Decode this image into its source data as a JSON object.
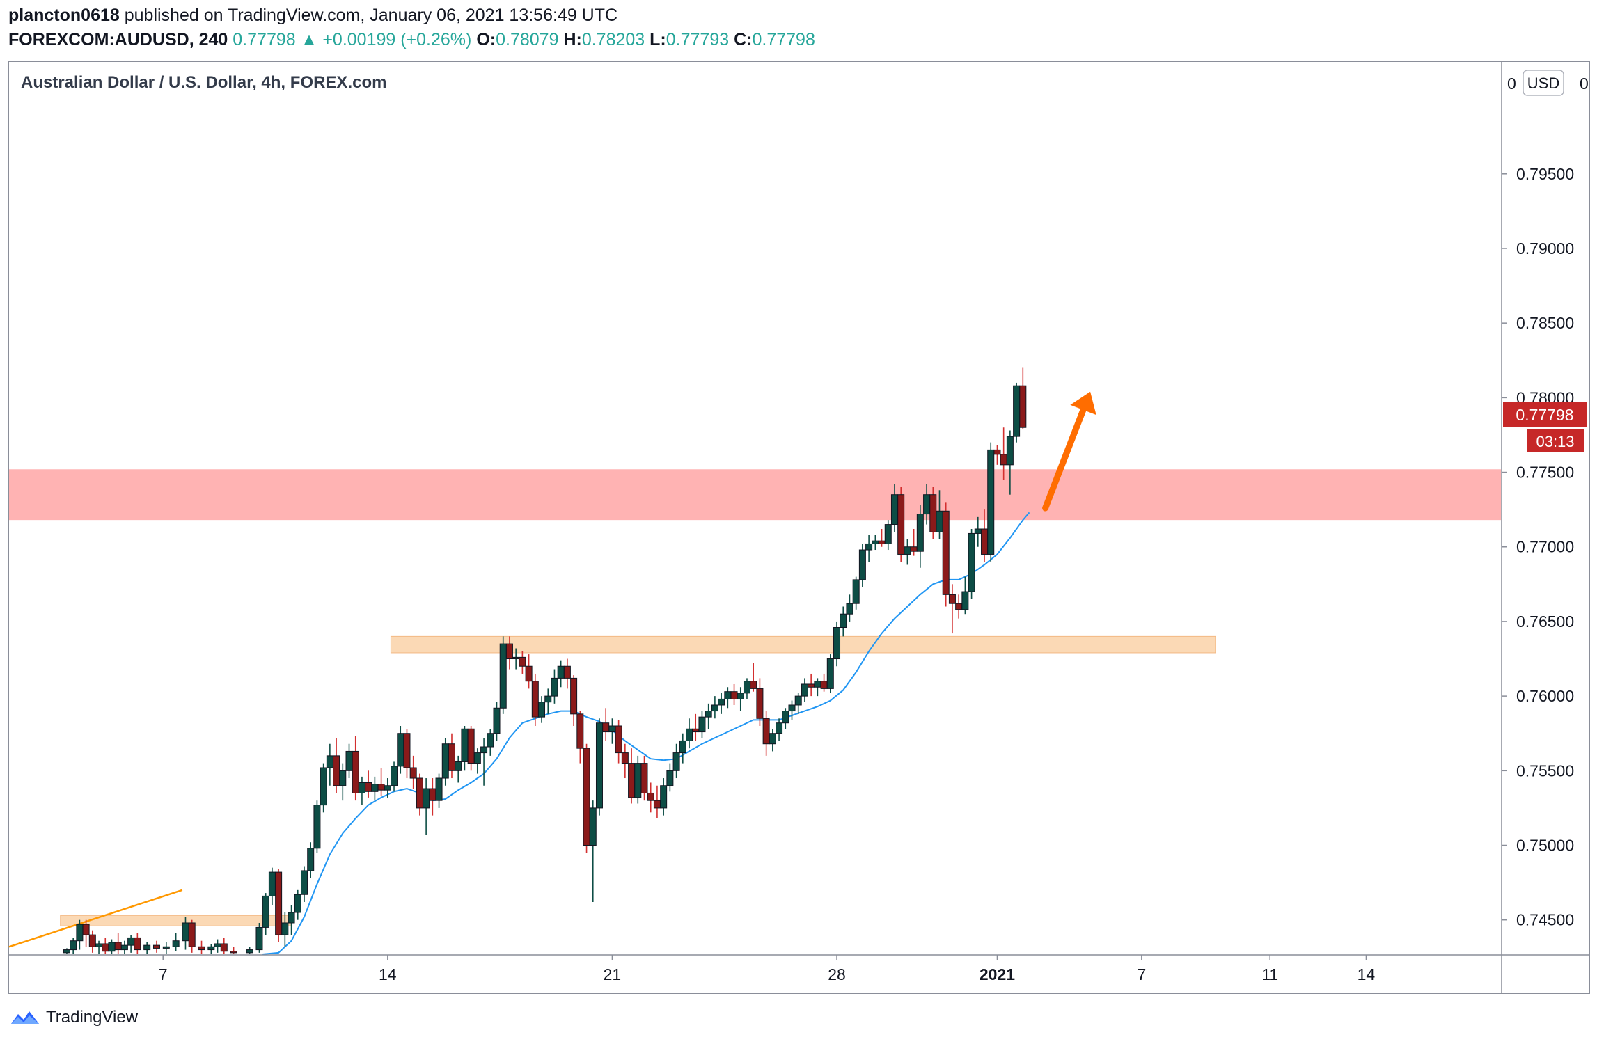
{
  "header": {
    "author": "plancton0618",
    "published_text": "published on TradingView.com, January 06, 2021 13:56:49 UTC",
    "symbol": "FOREXCOM:AUDUSD, 240",
    "last": "0.77798",
    "change": "+0.00199 (+0.26%)",
    "o_label": "O:",
    "o_value": "0.78079",
    "h_label": "H:",
    "h_value": "0.78203",
    "l_label": "L:",
    "l_value": "0.77793",
    "c_label": "C:",
    "c_value": "0.77798"
  },
  "chart": {
    "title": "Australian Dollar / U.S. Dollar, 4h, FOREX.com",
    "currency_button": "USD",
    "price_badge": "0.77798",
    "countdown_badge": "03:13",
    "top_partial_label": "0",
    "colors": {
      "up": "#0d4d45",
      "down": "#8b1a1a",
      "ma": "#2196f3",
      "resistance_zone": "#ffb3b3",
      "support_zone": "#fbd9b5",
      "arrow": "#ff6d00",
      "trendline": "#ff9800",
      "badge": "#c62828"
    },
    "icons": [
      "tradingview-logo-icon",
      "up-triangle-icon"
    ]
  },
  "chart_data": {
    "type": "candlestick",
    "title": "Australian Dollar / U.S. Dollar, 4h, FOREX.com",
    "ylim": [
      0.7427,
      0.8025
    ],
    "y_ticks": [
      "0.74500",
      "0.75000",
      "0.75500",
      "0.76000",
      "0.76500",
      "0.77000",
      "0.77500",
      "0.78000",
      "0.78500",
      "0.79000",
      "0.79500"
    ],
    "x_ticks": [
      {
        "label": "7",
        "t": 7
      },
      {
        "label": "14",
        "t": 14
      },
      {
        "label": "21",
        "t": 21
      },
      {
        "label": "28",
        "t": 28
      },
      {
        "label": "2021",
        "t": 33,
        "bold": true
      },
      {
        "label": "7",
        "t": 37.5
      },
      {
        "label": "11",
        "t": 41.5
      },
      {
        "label": "14",
        "t": 44.5
      }
    ],
    "x_range": [
      2.2,
      48.7
    ],
    "zones": [
      {
        "name": "resistance",
        "t0": 2.2,
        "t1": 48.7,
        "y0": 0.7718,
        "y1": 0.7752
      },
      {
        "name": "support-upper",
        "t0": 14.1,
        "t1": 39.8,
        "y0": 0.7629,
        "y1": 0.764
      },
      {
        "name": "support-lower",
        "t0": 3.8,
        "t1": 11.0,
        "y0": 0.7446,
        "y1": 0.7453
      }
    ],
    "trendline": {
      "t0": 2.2,
      "y0": 0.7432,
      "t1": 7.6,
      "y1": 0.747
    },
    "arrow": {
      "t0": 34.5,
      "y0": 0.7726,
      "t1": 35.9,
      "y1": 0.7804
    },
    "last_price": 0.77798,
    "candles": [
      [
        4.0,
        0.7428,
        0.7431,
        0.7426,
        0.743
      ],
      [
        4.2,
        0.743,
        0.7438,
        0.7425,
        0.7436
      ],
      [
        4.4,
        0.7436,
        0.745,
        0.743,
        0.7447
      ],
      [
        4.6,
        0.7447,
        0.745,
        0.7432,
        0.744
      ],
      [
        4.8,
        0.744,
        0.7443,
        0.7428,
        0.7432
      ],
      [
        5.0,
        0.7432,
        0.7436,
        0.7427,
        0.7434
      ],
      [
        5.2,
        0.7434,
        0.7438,
        0.7425,
        0.7429
      ],
      [
        5.4,
        0.7429,
        0.7437,
        0.7426,
        0.7435
      ],
      [
        5.6,
        0.7435,
        0.7441,
        0.7427,
        0.743
      ],
      [
        5.8,
        0.743,
        0.7436,
        0.7426,
        0.7433
      ],
      [
        6.0,
        0.7433,
        0.744,
        0.7428,
        0.7438
      ],
      [
        6.2,
        0.7438,
        0.7441,
        0.7427,
        0.743
      ],
      [
        6.5,
        0.743,
        0.7435,
        0.7427,
        0.7433
      ],
      [
        6.8,
        0.7433,
        0.7436,
        0.7428,
        0.7431
      ],
      [
        7.1,
        0.7431,
        0.7435,
        0.7427,
        0.7432
      ],
      [
        7.4,
        0.7432,
        0.7441,
        0.7429,
        0.7436
      ],
      [
        7.7,
        0.7436,
        0.7452,
        0.743,
        0.7448
      ],
      [
        7.9,
        0.7448,
        0.745,
        0.7428,
        0.7432
      ],
      [
        8.2,
        0.7432,
        0.7436,
        0.7427,
        0.743
      ],
      [
        8.5,
        0.743,
        0.7434,
        0.7426,
        0.7432
      ],
      [
        8.7,
        0.7432,
        0.7437,
        0.7428,
        0.7434
      ],
      [
        8.9,
        0.7434,
        0.7438,
        0.7427,
        0.7429
      ],
      [
        9.2,
        0.7429,
        0.7432,
        0.7426,
        0.7428
      ],
      [
        9.7,
        0.7428,
        0.7432,
        0.7426,
        0.743
      ],
      [
        10.0,
        0.743,
        0.7448,
        0.7428,
        0.7445
      ],
      [
        10.2,
        0.7445,
        0.7468,
        0.744,
        0.7466
      ],
      [
        10.4,
        0.7466,
        0.7485,
        0.746,
        0.7482
      ],
      [
        10.6,
        0.7482,
        0.7484,
        0.7435,
        0.744
      ],
      [
        10.8,
        0.744,
        0.7455,
        0.7432,
        0.7448
      ],
      [
        11.0,
        0.7448,
        0.746,
        0.744,
        0.7455
      ],
      [
        11.2,
        0.7455,
        0.747,
        0.745,
        0.7467
      ],
      [
        11.4,
        0.7467,
        0.7486,
        0.7462,
        0.7483
      ],
      [
        11.6,
        0.7483,
        0.7502,
        0.7478,
        0.7498
      ],
      [
        11.8,
        0.7498,
        0.753,
        0.7495,
        0.7527
      ],
      [
        12.0,
        0.7527,
        0.7555,
        0.7522,
        0.7552
      ],
      [
        12.2,
        0.7552,
        0.7568,
        0.754,
        0.756
      ],
      [
        12.4,
        0.756,
        0.7572,
        0.7535,
        0.754
      ],
      [
        12.6,
        0.754,
        0.7555,
        0.753,
        0.755
      ],
      [
        12.8,
        0.755,
        0.7568,
        0.7545,
        0.7563
      ],
      [
        13.0,
        0.7563,
        0.7573,
        0.753,
        0.7535
      ],
      [
        13.2,
        0.7535,
        0.7546,
        0.7527,
        0.7542
      ],
      [
        13.4,
        0.7542,
        0.755,
        0.7532,
        0.7536
      ],
      [
        13.6,
        0.7536,
        0.7546,
        0.753,
        0.7541
      ],
      [
        13.8,
        0.7541,
        0.7552,
        0.7533,
        0.7537
      ],
      [
        14.0,
        0.7537,
        0.7545,
        0.7532,
        0.754
      ],
      [
        14.2,
        0.754,
        0.7556,
        0.7536,
        0.7553
      ],
      [
        14.4,
        0.7553,
        0.758,
        0.7548,
        0.7575
      ],
      [
        14.6,
        0.7575,
        0.7578,
        0.7545,
        0.7552
      ],
      [
        14.8,
        0.7552,
        0.756,
        0.7538,
        0.7545
      ],
      [
        15.0,
        0.7545,
        0.7548,
        0.752,
        0.7525
      ],
      [
        15.2,
        0.7525,
        0.7545,
        0.7507,
        0.7538
      ],
      [
        15.4,
        0.7538,
        0.7545,
        0.752,
        0.753
      ],
      [
        15.6,
        0.753,
        0.7548,
        0.7525,
        0.7545
      ],
      [
        15.8,
        0.7545,
        0.7572,
        0.754,
        0.7568
      ],
      [
        16.0,
        0.7568,
        0.7575,
        0.7545,
        0.755
      ],
      [
        16.2,
        0.755,
        0.756,
        0.7542,
        0.7556
      ],
      [
        16.4,
        0.7556,
        0.758,
        0.755,
        0.7578
      ],
      [
        16.6,
        0.7578,
        0.758,
        0.755,
        0.7555
      ],
      [
        16.8,
        0.7555,
        0.7565,
        0.7548,
        0.7562
      ],
      [
        17.0,
        0.7562,
        0.7572,
        0.754,
        0.7566
      ],
      [
        17.2,
        0.7566,
        0.7578,
        0.756,
        0.7575
      ],
      [
        17.4,
        0.7575,
        0.7596,
        0.757,
        0.7592
      ],
      [
        17.6,
        0.7592,
        0.764,
        0.7588,
        0.7635
      ],
      [
        17.8,
        0.7635,
        0.764,
        0.7618,
        0.7625
      ],
      [
        18.0,
        0.7625,
        0.7632,
        0.7618,
        0.7626
      ],
      [
        18.2,
        0.7626,
        0.763,
        0.7615,
        0.762
      ],
      [
        18.4,
        0.762,
        0.7628,
        0.7605,
        0.761
      ],
      [
        18.6,
        0.761,
        0.7615,
        0.758,
        0.7586
      ],
      [
        18.8,
        0.7586,
        0.76,
        0.7582,
        0.7596
      ],
      [
        19.0,
        0.7596,
        0.7605,
        0.7588,
        0.76
      ],
      [
        19.2,
        0.76,
        0.7618,
        0.7595,
        0.7612
      ],
      [
        19.4,
        0.7612,
        0.7624,
        0.7606,
        0.762
      ],
      [
        19.6,
        0.762,
        0.7625,
        0.7605,
        0.7612
      ],
      [
        19.8,
        0.7612,
        0.7614,
        0.758,
        0.7588
      ],
      [
        20.0,
        0.7588,
        0.759,
        0.7555,
        0.7565
      ],
      [
        20.2,
        0.7565,
        0.7568,
        0.7495,
        0.75
      ],
      [
        20.4,
        0.75,
        0.753,
        0.7462,
        0.7525
      ],
      [
        20.6,
        0.7525,
        0.7585,
        0.752,
        0.7582
      ],
      [
        20.8,
        0.7582,
        0.7592,
        0.757,
        0.7576
      ],
      [
        21.0,
        0.7576,
        0.7585,
        0.7568,
        0.758
      ],
      [
        21.2,
        0.758,
        0.7584,
        0.7555,
        0.7562
      ],
      [
        21.4,
        0.7562,
        0.7568,
        0.7545,
        0.7555
      ],
      [
        21.6,
        0.7555,
        0.7565,
        0.7528,
        0.7532
      ],
      [
        21.8,
        0.7532,
        0.756,
        0.7528,
        0.7555
      ],
      [
        22.0,
        0.7555,
        0.756,
        0.753,
        0.7535
      ],
      [
        22.2,
        0.7535,
        0.7542,
        0.7522,
        0.753
      ],
      [
        22.4,
        0.753,
        0.754,
        0.7518,
        0.7525
      ],
      [
        22.6,
        0.7525,
        0.7545,
        0.752,
        0.754
      ],
      [
        22.8,
        0.754,
        0.7555,
        0.7536,
        0.755
      ],
      [
        23.0,
        0.755,
        0.7568,
        0.7545,
        0.7562
      ],
      [
        23.2,
        0.7562,
        0.7575,
        0.7555,
        0.757
      ],
      [
        23.4,
        0.757,
        0.7585,
        0.7565,
        0.7578
      ],
      [
        23.6,
        0.7578,
        0.7588,
        0.757,
        0.7576
      ],
      [
        23.8,
        0.7576,
        0.759,
        0.7572,
        0.7586
      ],
      [
        24.0,
        0.7586,
        0.7595,
        0.7578,
        0.759
      ],
      [
        24.2,
        0.759,
        0.76,
        0.7585,
        0.7594
      ],
      [
        24.4,
        0.7594,
        0.7602,
        0.7588,
        0.7598
      ],
      [
        24.6,
        0.7598,
        0.7606,
        0.7592,
        0.7603
      ],
      [
        24.8,
        0.7603,
        0.7608,
        0.7594,
        0.7598
      ],
      [
        25.0,
        0.7598,
        0.7606,
        0.759,
        0.7602
      ],
      [
        25.2,
        0.7602,
        0.7612,
        0.7598,
        0.761
      ],
      [
        25.4,
        0.761,
        0.7622,
        0.7603,
        0.7605
      ],
      [
        25.6,
        0.7605,
        0.7612,
        0.758,
        0.7585
      ],
      [
        25.8,
        0.7585,
        0.759,
        0.756,
        0.7568
      ],
      [
        26.0,
        0.7568,
        0.7578,
        0.7563,
        0.7575
      ],
      [
        26.2,
        0.7575,
        0.7585,
        0.757,
        0.7582
      ],
      [
        26.4,
        0.7582,
        0.7592,
        0.7578,
        0.759
      ],
      [
        26.6,
        0.759,
        0.7597,
        0.7584,
        0.7594
      ],
      [
        26.8,
        0.7594,
        0.7602,
        0.7588,
        0.76
      ],
      [
        27.0,
        0.76,
        0.7612,
        0.7596,
        0.7608
      ],
      [
        27.2,
        0.7608,
        0.7615,
        0.76,
        0.7606
      ],
      [
        27.4,
        0.7606,
        0.7612,
        0.76,
        0.761
      ],
      [
        27.6,
        0.761,
        0.7615,
        0.7603,
        0.7605
      ],
      [
        27.8,
        0.7605,
        0.7628,
        0.7602,
        0.7625
      ],
      [
        28.0,
        0.7625,
        0.765,
        0.762,
        0.7646
      ],
      [
        28.2,
        0.7646,
        0.766,
        0.764,
        0.7655
      ],
      [
        28.4,
        0.7655,
        0.7668,
        0.765,
        0.7662
      ],
      [
        28.6,
        0.7662,
        0.768,
        0.7658,
        0.7678
      ],
      [
        28.8,
        0.7678,
        0.7702,
        0.7673,
        0.7698
      ],
      [
        29.0,
        0.7698,
        0.7708,
        0.769,
        0.7702
      ],
      [
        29.2,
        0.7702,
        0.7708,
        0.7698,
        0.7704
      ],
      [
        29.4,
        0.7704,
        0.7712,
        0.77,
        0.7702
      ],
      [
        29.6,
        0.7702,
        0.7718,
        0.7698,
        0.7715
      ],
      [
        29.8,
        0.7715,
        0.7742,
        0.771,
        0.7735
      ],
      [
        30.0,
        0.7735,
        0.774,
        0.769,
        0.7695
      ],
      [
        30.2,
        0.7695,
        0.7705,
        0.7688,
        0.77
      ],
      [
        30.4,
        0.77,
        0.7712,
        0.7694,
        0.7697
      ],
      [
        30.6,
        0.7697,
        0.7728,
        0.7686,
        0.7722
      ],
      [
        30.8,
        0.7722,
        0.7742,
        0.7715,
        0.7735
      ],
      [
        31.0,
        0.7735,
        0.774,
        0.7705,
        0.771
      ],
      [
        31.2,
        0.771,
        0.7738,
        0.7705,
        0.7724
      ],
      [
        31.4,
        0.7724,
        0.773,
        0.766,
        0.7668
      ],
      [
        31.6,
        0.7668,
        0.7675,
        0.7642,
        0.7662
      ],
      [
        31.8,
        0.7662,
        0.7668,
        0.7652,
        0.7658
      ],
      [
        32.0,
        0.7658,
        0.768,
        0.7655,
        0.767
      ],
      [
        32.2,
        0.767,
        0.7712,
        0.7665,
        0.7709
      ],
      [
        32.4,
        0.7709,
        0.772,
        0.77,
        0.7712
      ],
      [
        32.6,
        0.7712,
        0.7725,
        0.769,
        0.7695
      ],
      [
        32.8,
        0.7695,
        0.777,
        0.769,
        0.7765
      ],
      [
        33.0,
        0.7765,
        0.7768,
        0.7755,
        0.7762
      ],
      [
        33.2,
        0.7762,
        0.778,
        0.7745,
        0.7755
      ],
      [
        33.4,
        0.7755,
        0.7778,
        0.7735,
        0.7774
      ],
      [
        33.6,
        0.7774,
        0.781,
        0.777,
        0.7808
      ],
      [
        33.8,
        0.7808,
        0.782,
        0.7779,
        0.778
      ]
    ],
    "ma": [
      [
        10.1,
        0.7426
      ],
      [
        10.6,
        0.7428
      ],
      [
        11.0,
        0.7436
      ],
      [
        11.4,
        0.7452
      ],
      [
        11.8,
        0.7474
      ],
      [
        12.2,
        0.7494
      ],
      [
        12.6,
        0.7508
      ],
      [
        13.0,
        0.7518
      ],
      [
        13.4,
        0.7527
      ],
      [
        13.8,
        0.7532
      ],
      [
        14.2,
        0.7536
      ],
      [
        14.6,
        0.7538
      ],
      [
        15.0,
        0.7535
      ],
      [
        15.4,
        0.753
      ],
      [
        15.8,
        0.7531
      ],
      [
        16.2,
        0.7537
      ],
      [
        16.6,
        0.7542
      ],
      [
        17.0,
        0.7548
      ],
      [
        17.4,
        0.7558
      ],
      [
        17.8,
        0.7572
      ],
      [
        18.2,
        0.7582
      ],
      [
        18.6,
        0.7585
      ],
      [
        19.0,
        0.7588
      ],
      [
        19.4,
        0.759
      ],
      [
        19.8,
        0.759
      ],
      [
        20.2,
        0.7586
      ],
      [
        20.6,
        0.7583
      ],
      [
        21.0,
        0.7577
      ],
      [
        21.4,
        0.757
      ],
      [
        21.8,
        0.7564
      ],
      [
        22.2,
        0.7558
      ],
      [
        22.6,
        0.7557
      ],
      [
        23.0,
        0.7558
      ],
      [
        23.4,
        0.7563
      ],
      [
        23.8,
        0.7568
      ],
      [
        24.2,
        0.7572
      ],
      [
        24.6,
        0.7576
      ],
      [
        25.0,
        0.758
      ],
      [
        25.4,
        0.7584
      ],
      [
        25.8,
        0.7584
      ],
      [
        26.2,
        0.7584
      ],
      [
        26.6,
        0.7587
      ],
      [
        27.0,
        0.759
      ],
      [
        27.4,
        0.7593
      ],
      [
        27.8,
        0.7597
      ],
      [
        28.2,
        0.7604
      ],
      [
        28.6,
        0.7616
      ],
      [
        29.0,
        0.763
      ],
      [
        29.4,
        0.7642
      ],
      [
        29.8,
        0.7652
      ],
      [
        30.2,
        0.766
      ],
      [
        30.6,
        0.7668
      ],
      [
        31.0,
        0.7675
      ],
      [
        31.4,
        0.7678
      ],
      [
        31.8,
        0.7678
      ],
      [
        32.2,
        0.7682
      ],
      [
        32.6,
        0.7688
      ],
      [
        33.0,
        0.7695
      ],
      [
        33.4,
        0.7706
      ],
      [
        33.8,
        0.7718
      ],
      [
        34.0,
        0.7723
      ]
    ]
  },
  "footer": {
    "brand": "TradingView"
  }
}
